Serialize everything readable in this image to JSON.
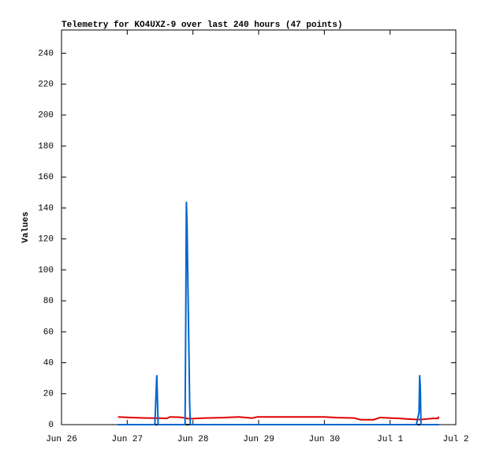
{
  "chart_data": {
    "type": "line",
    "title": "Telemetry for KO4UXZ-9 over last 240 hours (47 points)",
    "y_label": "Values",
    "x": [
      0.86,
      1.05,
      1.3,
      1.42,
      1.45,
      1.46,
      1.47,
      1.6,
      1.65,
      1.8,
      1.88,
      1.89,
      1.9,
      1.91,
      1.92,
      1.93,
      1.94,
      1.95,
      1.96,
      2.15,
      2.45,
      2.7,
      2.9,
      2.98,
      3.1,
      3.4,
      3.7,
      4.0,
      4.2,
      4.45,
      4.55,
      4.75,
      4.85,
      5.0,
      5.15,
      5.3,
      5.4,
      5.44,
      5.45,
      5.46,
      5.47,
      5.55,
      5.65,
      5.7,
      5.72,
      5.73,
      5.74
    ],
    "series": [
      {
        "color": "#000000",
        "values": [
          0,
          0,
          0,
          0,
          0,
          0,
          0,
          0,
          0,
          0,
          0,
          0,
          0,
          0,
          0,
          0,
          0,
          0,
          0,
          0,
          0,
          0,
          0,
          0,
          0,
          0,
          0,
          0,
          0,
          0,
          0,
          0,
          0,
          0,
          0,
          0,
          0,
          0,
          0,
          0,
          0,
          0,
          0,
          0,
          0,
          0,
          0
        ]
      },
      {
        "color": "#e00000",
        "values": [
          5,
          4.6,
          4.3,
          4.2,
          4.2,
          4.2,
          4.2,
          4.0,
          5.0,
          4.8,
          4.3,
          4.2,
          4.1,
          4.0,
          3.9,
          3.9,
          3.8,
          3.8,
          3.8,
          4.2,
          4.5,
          5.0,
          4.2,
          5.0,
          5.0,
          5.0,
          5.0,
          5.0,
          4.5,
          4.3,
          3.2,
          3.2,
          4.6,
          4.3,
          4.0,
          3.6,
          3.3,
          3.3,
          3.3,
          3.3,
          3.3,
          3.6,
          4.0,
          4.0,
          4.0,
          4.0,
          5.2
        ]
      },
      {
        "color": "#0066cc",
        "values": [
          0,
          0,
          0,
          0,
          32,
          16,
          0,
          0,
          0,
          0,
          0,
          64,
          144,
          130,
          100,
          72,
          44,
          14,
          0,
          0,
          0,
          0,
          0,
          0,
          0,
          0,
          0,
          0,
          0,
          0,
          0,
          0,
          0,
          0,
          0,
          0,
          0,
          8,
          32,
          24,
          0,
          0,
          0,
          0,
          0,
          0,
          0
        ]
      }
    ],
    "xlim": [
      0,
      6
    ],
    "xticks": [
      {
        "value": 0,
        "label": "Jun 26"
      },
      {
        "value": 1,
        "label": "Jun 27"
      },
      {
        "value": 2,
        "label": "Jun 28"
      },
      {
        "value": 3,
        "label": "Jun 29"
      },
      {
        "value": 4,
        "label": "Jun 30"
      },
      {
        "value": 5,
        "label": "Jul 1"
      },
      {
        "value": 6,
        "label": "Jul 2"
      }
    ],
    "ylim": [
      0,
      255
    ],
    "yticks": [
      0,
      20,
      40,
      60,
      80,
      100,
      120,
      140,
      160,
      180,
      200,
      220,
      240
    ]
  }
}
